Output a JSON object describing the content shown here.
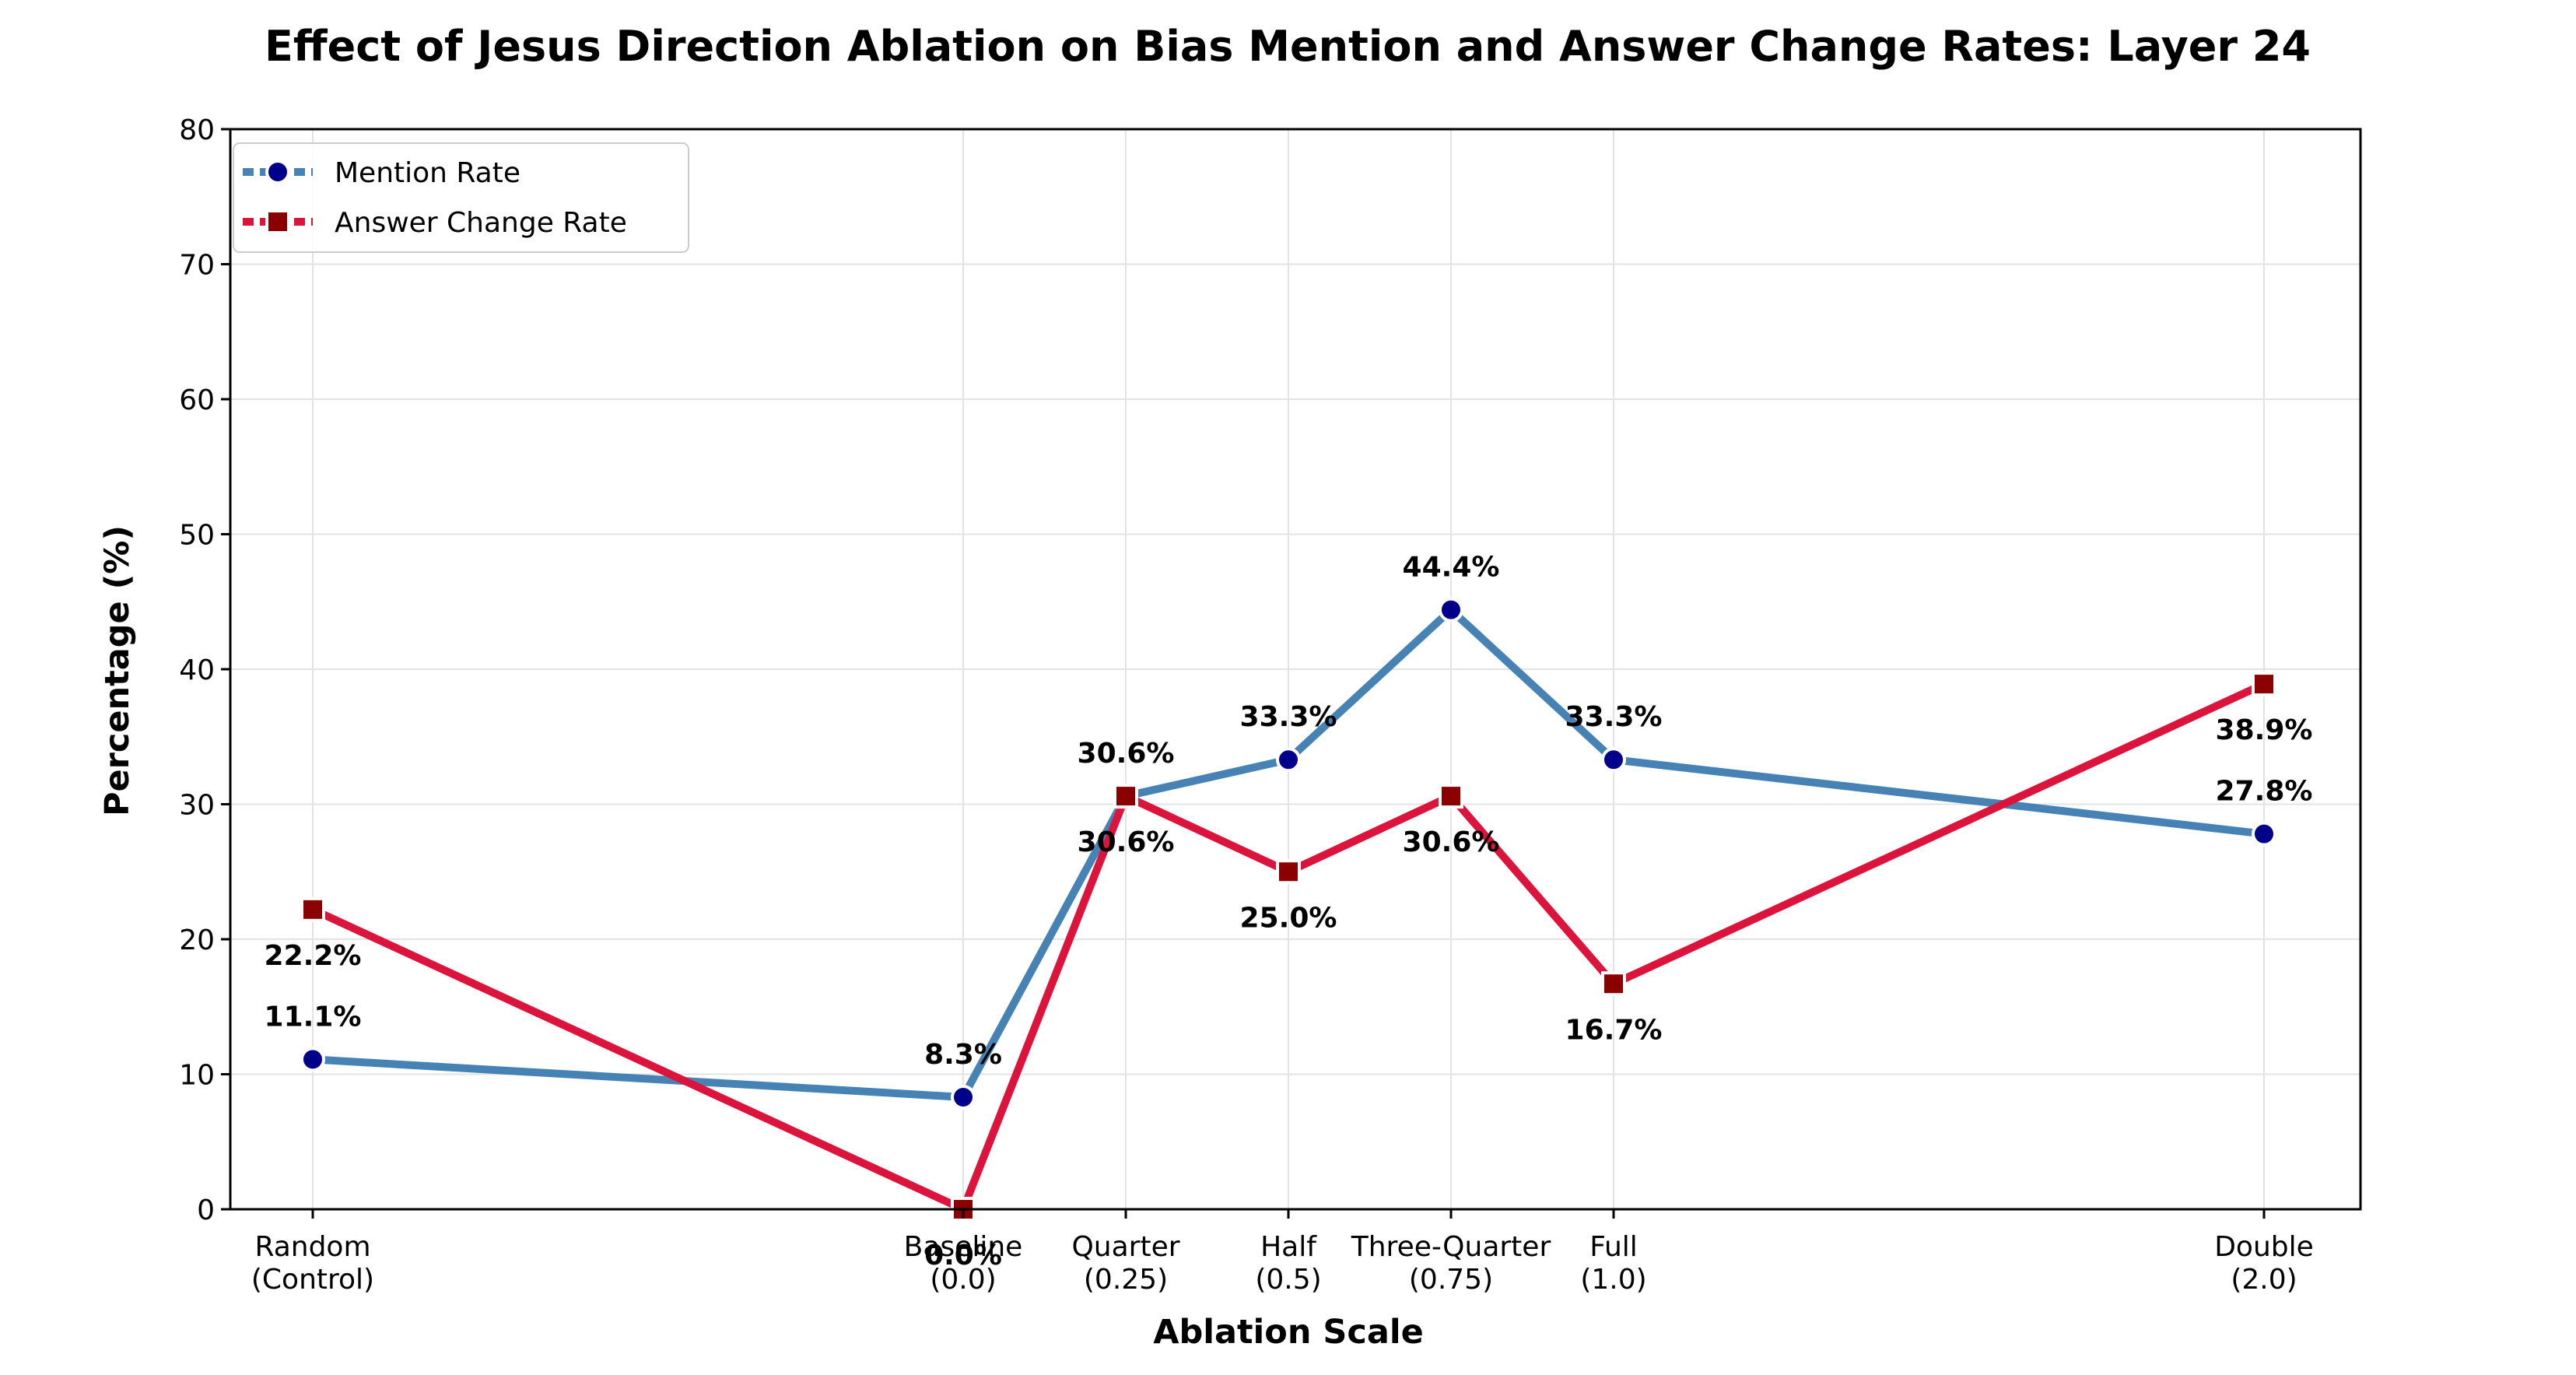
{
  "chart_data": {
    "type": "line",
    "title": "Effect of Jesus Direction Ablation on Bias Mention and Answer Change Rates: Layer 24",
    "xlabel": "Ablation Scale",
    "ylabel": "Percentage (%)",
    "ylim": [
      0,
      80
    ],
    "yticks": [
      "0",
      "10",
      "20",
      "30",
      "40",
      "50",
      "60",
      "70",
      "80"
    ],
    "x": [
      -1,
      0,
      0.25,
      0.5,
      0.75,
      1.0,
      2.0
    ],
    "categories": [
      [
        "Random",
        "(Control)"
      ],
      [
        "Baseline",
        "(0.0)"
      ],
      [
        "Quarter",
        "(0.25)"
      ],
      [
        "Half",
        "(0.5)"
      ],
      [
        "Three-Quarter",
        "(0.75)"
      ],
      [
        "Full",
        "(1.0)"
      ],
      [
        "Double",
        "(2.0)"
      ]
    ],
    "grid": true,
    "legend_position": "upper-left",
    "series": [
      {
        "name": "Mention Rate",
        "values": [
          11.1,
          8.3,
          30.6,
          33.3,
          44.4,
          33.3,
          27.8
        ],
        "labels": [
          "11.1%",
          "8.3%",
          "30.6%",
          "33.3%",
          "44.4%",
          "33.3%",
          "27.8%"
        ],
        "line_color": "#4682b4",
        "marker_color": "#00008b",
        "marker": "circle",
        "label_side": "above"
      },
      {
        "name": "Answer Change Rate",
        "values": [
          22.2,
          0.0,
          30.6,
          25.0,
          30.6,
          16.7,
          38.9
        ],
        "labels": [
          "22.2%",
          "0.0%",
          "30.6%",
          "25.0%",
          "30.6%",
          "16.7%",
          "38.9%"
        ],
        "line_color": "#dc143c",
        "marker_color": "#8b0000",
        "marker": "square",
        "label_side": "below"
      }
    ]
  }
}
